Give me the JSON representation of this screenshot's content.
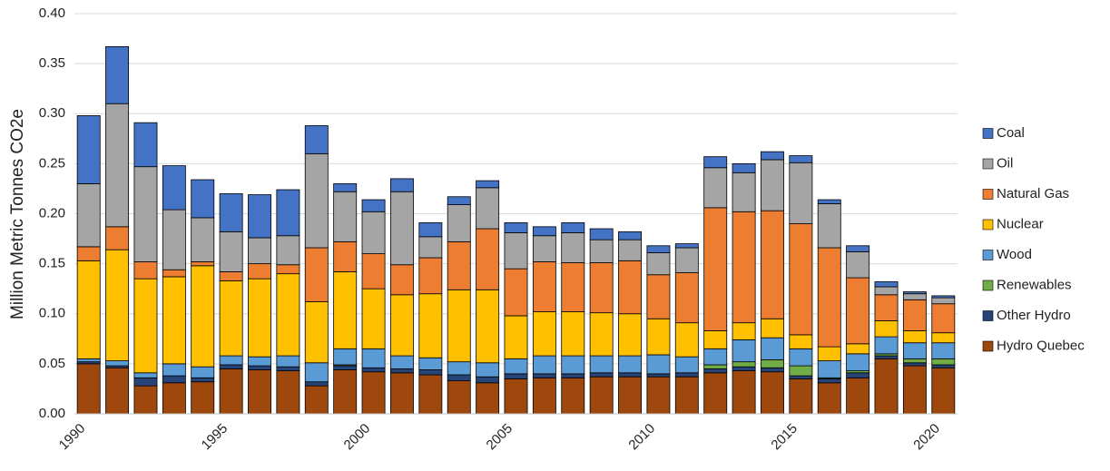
{
  "chart_data": {
    "type": "stacked-bar",
    "y_label": "Million Metric Tonnes CO2e",
    "categories": [
      "1990",
      null,
      null,
      null,
      null,
      "1995",
      null,
      null,
      null,
      null,
      "2000",
      null,
      null,
      null,
      null,
      "2005",
      null,
      null,
      null,
      null,
      "2010",
      null,
      null,
      null,
      null,
      "2015",
      null,
      null,
      null,
      null,
      "2020"
    ],
    "ylim": [
      0,
      0.4
    ],
    "yticks": [
      {
        "value": 0,
        "label": "0.00"
      },
      {
        "value": 0.05,
        "label": "0.05"
      },
      {
        "value": 0.1,
        "label": "0.10"
      },
      {
        "value": 0.15,
        "label": "0.15"
      },
      {
        "value": 0.2,
        "label": "0.20"
      },
      {
        "value": 0.25,
        "label": "0.25"
      },
      {
        "value": 0.3,
        "label": "0.30"
      },
      {
        "value": 0.35,
        "label": "0.35"
      },
      {
        "value": 0.4,
        "label": "0.40"
      }
    ],
    "grid": true,
    "legend": "right",
    "series": [
      {
        "name": "Hydro Quebec",
        "color": "#9e480e",
        "values": [
          0.05,
          0.046,
          0.028,
          0.031,
          0.032,
          0.045,
          0.044,
          0.043,
          0.028,
          0.044,
          0.042,
          0.041,
          0.039,
          0.033,
          0.031,
          0.035,
          0.036,
          0.036,
          0.037,
          0.037,
          0.037,
          0.037,
          0.041,
          0.043,
          0.042,
          0.035,
          0.031,
          0.036,
          0.055,
          0.048,
          0.046
        ]
      },
      {
        "name": "Other Hydro",
        "color": "#264478",
        "values": [
          0.002,
          0.002,
          0.008,
          0.007,
          0.004,
          0.004,
          0.004,
          0.004,
          0.004,
          0.004,
          0.004,
          0.004,
          0.005,
          0.006,
          0.006,
          0.005,
          0.004,
          0.004,
          0.004,
          0.004,
          0.003,
          0.004,
          0.004,
          0.004,
          0.004,
          0.003,
          0.004,
          0.005,
          0.003,
          0.003,
          0.003
        ]
      },
      {
        "name": "Renewables",
        "color": "#70ad47",
        "values": [
          0,
          0,
          0,
          0,
          0,
          0,
          0,
          0,
          0,
          0.001,
          0,
          0,
          0,
          0,
          0,
          0,
          0,
          0,
          0,
          0,
          0,
          0,
          0.004,
          0.005,
          0.008,
          0.01,
          0.001,
          0.002,
          0.002,
          0.004,
          0.006
        ]
      },
      {
        "name": "Wood",
        "color": "#5b9bd5",
        "values": [
          0.003,
          0.005,
          0.005,
          0.012,
          0.011,
          0.009,
          0.009,
          0.011,
          0.019,
          0.016,
          0.019,
          0.013,
          0.012,
          0.013,
          0.014,
          0.015,
          0.018,
          0.018,
          0.017,
          0.017,
          0.019,
          0.016,
          0.016,
          0.022,
          0.022,
          0.017,
          0.017,
          0.017,
          0.017,
          0.016,
          0.016
        ]
      },
      {
        "name": "Nuclear",
        "color": "#ffc000",
        "values": [
          0.098,
          0.111,
          0.094,
          0.087,
          0.101,
          0.075,
          0.078,
          0.082,
          0.061,
          0.077,
          0.06,
          0.061,
          0.064,
          0.072,
          0.073,
          0.043,
          0.044,
          0.044,
          0.043,
          0.042,
          0.036,
          0.034,
          0.018,
          0.017,
          0.019,
          0.014,
          0.014,
          0.01,
          0.016,
          0.012,
          0.01
        ]
      },
      {
        "name": "Natural Gas",
        "color": "#ed7d31",
        "values": [
          0.014,
          0.023,
          0.017,
          0.007,
          0.004,
          0.009,
          0.015,
          0.009,
          0.054,
          0.03,
          0.035,
          0.03,
          0.036,
          0.048,
          0.061,
          0.047,
          0.05,
          0.049,
          0.05,
          0.053,
          0.044,
          0.05,
          0.123,
          0.111,
          0.108,
          0.111,
          0.099,
          0.066,
          0.026,
          0.031,
          0.029
        ]
      },
      {
        "name": "Oil",
        "color": "#a5a5a5",
        "values": [
          0.063,
          0.123,
          0.095,
          0.06,
          0.044,
          0.04,
          0.026,
          0.029,
          0.094,
          0.05,
          0.042,
          0.073,
          0.021,
          0.037,
          0.041,
          0.036,
          0.026,
          0.03,
          0.023,
          0.021,
          0.022,
          0.025,
          0.04,
          0.039,
          0.051,
          0.061,
          0.044,
          0.026,
          0.008,
          0.006,
          0.006
        ]
      },
      {
        "name": "Coal",
        "color": "#4472c4",
        "values": [
          0.068,
          0.057,
          0.044,
          0.044,
          0.038,
          0.038,
          0.043,
          0.046,
          0.028,
          0.008,
          0.012,
          0.013,
          0.014,
          0.008,
          0.007,
          0.01,
          0.009,
          0.01,
          0.011,
          0.008,
          0.007,
          0.004,
          0.011,
          0.009,
          0.008,
          0.007,
          0.004,
          0.006,
          0.005,
          0.002,
          0.002
        ]
      }
    ]
  }
}
